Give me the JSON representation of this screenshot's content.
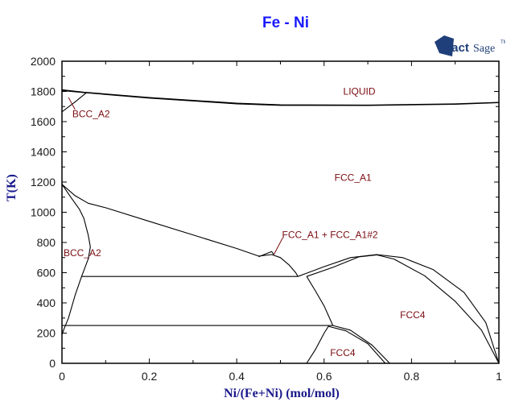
{
  "chart_data": {
    "type": "line",
    "title": "Fe - Ni",
    "xlabel": "Ni/(Fe+Ni) (mol/mol)",
    "ylabel": "T(K)",
    "xlim": [
      0,
      1
    ],
    "ylim": [
      0,
      2000
    ],
    "x_ticks": [
      "0",
      "0.2",
      "0.4",
      "0.6",
      "0.8",
      "1"
    ],
    "y_ticks": [
      "0",
      "200",
      "400",
      "600",
      "800",
      "1000",
      "1200",
      "1400",
      "1600",
      "1800",
      "2000"
    ],
    "grid": false,
    "phase_labels": [
      {
        "text": "LIQUID",
        "x": 0.64,
        "T": 1800
      },
      {
        "text": "BCC_A2",
        "x": 0.02,
        "T": 1650
      },
      {
        "text": "FCC_A1",
        "x": 0.62,
        "T": 1230
      },
      {
        "text": "FCC_A1 + FCC_A1#2",
        "x": 0.5,
        "T": 850
      },
      {
        "text": "BCC_A2",
        "x": 0.0,
        "T": 730
      },
      {
        "text": "FCC4",
        "x": 0.77,
        "T": 320
      },
      {
        "text": "FCC4",
        "x": 0.61,
        "T": 70
      }
    ],
    "series": [
      {
        "name": "liquidus",
        "points": [
          [
            0,
            1811
          ],
          [
            0.05,
            1795
          ],
          [
            0.2,
            1760
          ],
          [
            0.4,
            1722
          ],
          [
            0.5,
            1712
          ],
          [
            0.7,
            1710
          ],
          [
            0.9,
            1718
          ],
          [
            1,
            1728
          ]
        ]
      },
      {
        "name": "solidus",
        "points": [
          [
            0,
            1806
          ],
          [
            0.05,
            1792
          ],
          [
            0.2,
            1756
          ],
          [
            0.4,
            1718
          ],
          [
            0.5,
            1708
          ],
          [
            0.7,
            1707
          ],
          [
            0.9,
            1715
          ],
          [
            1,
            1726
          ]
        ]
      },
      {
        "name": "bcc_delta_boundary",
        "points": [
          [
            0,
            1665
          ],
          [
            0.03,
            1730
          ],
          [
            0.055,
            1790
          ]
        ]
      },
      {
        "name": "fcc_bcc_upper",
        "points": [
          [
            0,
            1185
          ],
          [
            0.03,
            1110
          ],
          [
            0.06,
            1060
          ],
          [
            0.1,
            1030
          ],
          [
            0.2,
            940
          ],
          [
            0.3,
            850
          ],
          [
            0.4,
            760
          ],
          [
            0.45,
            710
          ]
        ]
      },
      {
        "name": "bcc_solvus",
        "points": [
          [
            0,
            1185
          ],
          [
            0.02,
            1100
          ],
          [
            0.04,
            1020
          ],
          [
            0.05,
            960
          ],
          [
            0.06,
            850
          ],
          [
            0.065,
            770
          ],
          [
            0.06,
            690
          ],
          [
            0.045,
            575
          ],
          [
            0.03,
            450
          ],
          [
            0.015,
            300
          ],
          [
            0.005,
            230
          ],
          [
            0,
            190
          ]
        ]
      },
      {
        "name": "miscibility_upper",
        "points": [
          [
            0.45,
            710
          ],
          [
            0.48,
            720
          ],
          [
            0.5,
            700
          ],
          [
            0.52,
            650
          ],
          [
            0.535,
            600
          ],
          [
            0.54,
            575
          ]
        ]
      },
      {
        "name": "fcc_a1_2_spike",
        "points": [
          [
            0.45,
            705
          ],
          [
            0.48,
            740
          ],
          [
            0.485,
            720
          ]
        ]
      },
      {
        "name": "eutectoid_575",
        "points": [
          [
            0.045,
            575
          ],
          [
            0.54,
            575
          ]
        ]
      },
      {
        "name": "line_250",
        "points": [
          [
            0,
            250
          ],
          [
            0.62,
            250
          ]
        ]
      },
      {
        "name": "fcc4_dome_outer",
        "points": [
          [
            0.54,
            575
          ],
          [
            0.6,
            640
          ],
          [
            0.66,
            700
          ],
          [
            0.72,
            720
          ],
          [
            0.78,
            700
          ],
          [
            0.85,
            620
          ],
          [
            0.92,
            470
          ],
          [
            0.97,
            270
          ],
          [
            1,
            0
          ]
        ]
      },
      {
        "name": "fcc4_dome_inner",
        "points": [
          [
            0.56,
            575
          ],
          [
            0.62,
            635
          ],
          [
            0.68,
            705
          ],
          [
            0.72,
            718
          ],
          [
            0.76,
            690
          ],
          [
            0.83,
            580
          ],
          [
            0.9,
            410
          ],
          [
            0.96,
            220
          ],
          [
            1,
            0
          ]
        ]
      },
      {
        "name": "fcc4_left_boundary",
        "points": [
          [
            0.56,
            575
          ],
          [
            0.58,
            480
          ],
          [
            0.6,
            380
          ],
          [
            0.62,
            250
          ]
        ]
      },
      {
        "name": "fcc4_lower_dome",
        "points": [
          [
            0.56,
            0
          ],
          [
            0.58,
            90
          ],
          [
            0.6,
            200
          ],
          [
            0.61,
            245
          ],
          [
            0.65,
            215
          ],
          [
            0.7,
            130
          ],
          [
            0.74,
            0
          ]
        ]
      },
      {
        "name": "fcc4_lower_dome_inner",
        "points": [
          [
            0.62,
            250
          ],
          [
            0.66,
            220
          ],
          [
            0.71,
            120
          ],
          [
            0.75,
            0
          ]
        ]
      }
    ]
  },
  "header": {
    "title": "Fe - Ni",
    "logo_text_bold": "Fact",
    "logo_text": "Sage"
  },
  "axes": {
    "xlabel": "Ni/(Fe+Ni) (mol/mol)",
    "ylabel": "T(K)"
  }
}
